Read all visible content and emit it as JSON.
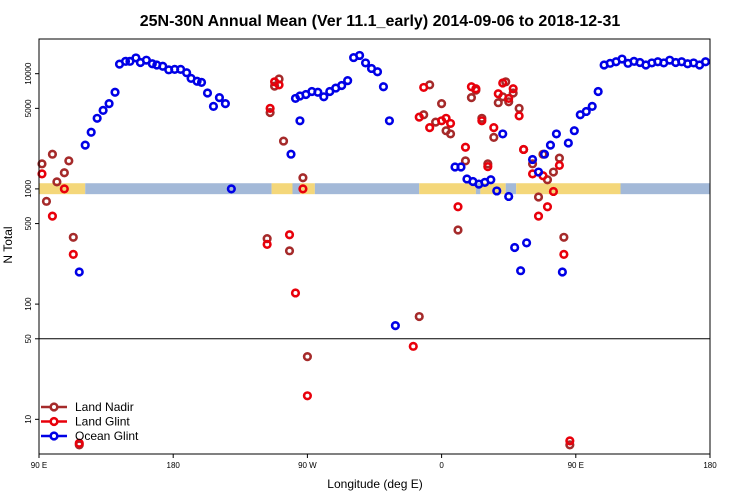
{
  "chart_data": {
    "type": "scatter",
    "title": "25N-30N Annual Mean (Ver 11.1_early)   2014-09-06 to 2018-12-31",
    "xlabel": "Longitude (deg E)",
    "ylabel": "N Total",
    "y_scale": "log",
    "xlim": [
      90,
      540
    ],
    "ylim": [
      5,
      20000
    ],
    "x_ticks": [
      {
        "value": 90,
        "label": "90 E"
      },
      {
        "value": 180,
        "label": "180"
      },
      {
        "value": 270,
        "label": "90 W"
      },
      {
        "value": 360,
        "label": "0"
      },
      {
        "value": 450,
        "label": "90 E"
      },
      {
        "value": 540,
        "label": "180"
      }
    ],
    "y_ticks": [
      {
        "value": 10,
        "label": "10"
      },
      {
        "value": 50,
        "label": "50"
      },
      {
        "value": 100,
        "label": "100"
      },
      {
        "value": 500,
        "label": "500"
      },
      {
        "value": 1000,
        "label": "1000"
      },
      {
        "value": 5000,
        "label": "5000"
      },
      {
        "value": 10000,
        "label": "10000"
      }
    ],
    "reference_line": 50,
    "legend_position": "bottom-left",
    "band": {
      "y_low": 900,
      "y_high": 1120,
      "land_color": "#f4d77a",
      "ocean_color": "#a3b9d8",
      "segments": [
        {
          "x0": 90,
          "x1": 121,
          "type": "land"
        },
        {
          "x0": 121,
          "x1": 246,
          "type": "ocean"
        },
        {
          "x0": 246,
          "x1": 260,
          "type": "land"
        },
        {
          "x0": 260,
          "x1": 265,
          "type": "ocean"
        },
        {
          "x0": 265,
          "x1": 275,
          "type": "land"
        },
        {
          "x0": 275,
          "x1": 345,
          "type": "ocean"
        },
        {
          "x0": 345,
          "x1": 383,
          "type": "land"
        },
        {
          "x0": 383,
          "x1": 386,
          "type": "ocean"
        },
        {
          "x0": 386,
          "x1": 403,
          "type": "land"
        },
        {
          "x0": 403,
          "x1": 410,
          "type": "ocean"
        },
        {
          "x0": 410,
          "x1": 480,
          "type": "land"
        },
        {
          "x0": 480,
          "x1": 540,
          "type": "ocean"
        }
      ]
    },
    "series": [
      {
        "name": "Land Nadir",
        "color": "#a52a2a",
        "points": [
          [
            92,
            1650
          ],
          [
            95,
            780
          ],
          [
            99,
            2000
          ],
          [
            102,
            1150
          ],
          [
            107,
            1380
          ],
          [
            110,
            1750
          ],
          [
            113,
            380
          ],
          [
            117,
            6
          ],
          [
            243,
            370
          ],
          [
            245,
            4600
          ],
          [
            248,
            7800
          ],
          [
            251,
            9000
          ],
          [
            254,
            2600
          ],
          [
            258,
            290
          ],
          [
            267,
            1250
          ],
          [
            270,
            35
          ],
          [
            345,
            78
          ],
          [
            348,
            4400
          ],
          [
            352,
            8000
          ],
          [
            356,
            3800
          ],
          [
            360,
            5500
          ],
          [
            363,
            3200
          ],
          [
            366,
            3000
          ],
          [
            371,
            440
          ],
          [
            376,
            1750
          ],
          [
            380,
            6200
          ],
          [
            383,
            7200
          ],
          [
            387,
            4100
          ],
          [
            391,
            1650
          ],
          [
            395,
            2800
          ],
          [
            398,
            5600
          ],
          [
            401,
            6300
          ],
          [
            403,
            8500
          ],
          [
            405,
            5700
          ],
          [
            408,
            6800
          ],
          [
            412,
            5000
          ],
          [
            415,
            2200
          ],
          [
            421,
            1650
          ],
          [
            425,
            850
          ],
          [
            428,
            2000
          ],
          [
            431,
            1200
          ],
          [
            435,
            1400
          ],
          [
            439,
            1850
          ],
          [
            442,
            380
          ],
          [
            446,
            6
          ]
        ]
      },
      {
        "name": "Land Glint",
        "color": "#e8000b",
        "points": [
          [
            92,
            1350
          ],
          [
            99,
            580
          ],
          [
            107,
            1000
          ],
          [
            113,
            270
          ],
          [
            117,
            6.2
          ],
          [
            243,
            330
          ],
          [
            245,
            5000
          ],
          [
            248,
            8500
          ],
          [
            251,
            8000
          ],
          [
            258,
            400
          ],
          [
            262,
            125
          ],
          [
            267,
            1000
          ],
          [
            270,
            16
          ],
          [
            341,
            43
          ],
          [
            345,
            4200
          ],
          [
            348,
            7600
          ],
          [
            352,
            3400
          ],
          [
            360,
            3900
          ],
          [
            363,
            4100
          ],
          [
            366,
            3700
          ],
          [
            371,
            700
          ],
          [
            376,
            2300
          ],
          [
            380,
            7700
          ],
          [
            383,
            7400
          ],
          [
            387,
            3900
          ],
          [
            391,
            1560
          ],
          [
            395,
            3400
          ],
          [
            398,
            6700
          ],
          [
            401,
            8300
          ],
          [
            405,
            6100
          ],
          [
            408,
            7400
          ],
          [
            412,
            4300
          ],
          [
            415,
            2200
          ],
          [
            421,
            1350
          ],
          [
            425,
            580
          ],
          [
            428,
            1300
          ],
          [
            431,
            700
          ],
          [
            435,
            950
          ],
          [
            439,
            1600
          ],
          [
            442,
            270
          ],
          [
            446,
            6.5
          ]
        ]
      },
      {
        "name": "Ocean Glint",
        "color": "#0000e6",
        "points": [
          [
            117,
            190
          ],
          [
            121,
            2400
          ],
          [
            125,
            3100
          ],
          [
            129,
            4100
          ],
          [
            133,
            4800
          ],
          [
            137,
            5500
          ],
          [
            141,
            6900
          ],
          [
            144,
            12100
          ],
          [
            148,
            12800
          ],
          [
            151,
            12800
          ],
          [
            155,
            13700
          ],
          [
            158,
            12500
          ],
          [
            162,
            13100
          ],
          [
            166,
            12200
          ],
          [
            169,
            11900
          ],
          [
            173,
            11600
          ],
          [
            177,
            10800
          ],
          [
            181,
            10900
          ],
          [
            185,
            10900
          ],
          [
            189,
            10200
          ],
          [
            192,
            9100
          ],
          [
            196,
            8600
          ],
          [
            199,
            8400
          ],
          [
            203,
            6800
          ],
          [
            207,
            5200
          ],
          [
            211,
            6200
          ],
          [
            215,
            5500
          ],
          [
            219,
            1000
          ],
          [
            265,
            3900
          ],
          [
            259,
            2000
          ],
          [
            262,
            6100
          ],
          [
            265,
            6400
          ],
          [
            269,
            6600
          ],
          [
            273,
            7000
          ],
          [
            277,
            6900
          ],
          [
            281,
            6300
          ],
          [
            285,
            7000
          ],
          [
            289,
            7500
          ],
          [
            293,
            7900
          ],
          [
            297,
            8700
          ],
          [
            301,
            13800
          ],
          [
            305,
            14400
          ],
          [
            309,
            12400
          ],
          [
            313,
            11100
          ],
          [
            317,
            10400
          ],
          [
            321,
            7700
          ],
          [
            325,
            3900
          ],
          [
            329,
            65
          ],
          [
            369,
            1550
          ],
          [
            373,
            1550
          ],
          [
            377,
            1220
          ],
          [
            381,
            1160
          ],
          [
            385,
            1100
          ],
          [
            389,
            1140
          ],
          [
            393,
            1200
          ],
          [
            397,
            960
          ],
          [
            401,
            3000
          ],
          [
            405,
            860
          ],
          [
            409,
            310
          ],
          [
            413,
            195
          ],
          [
            417,
            340
          ],
          [
            421,
            1800
          ],
          [
            425,
            1400
          ],
          [
            429,
            2000
          ],
          [
            433,
            2400
          ],
          [
            437,
            3000
          ],
          [
            441,
            190
          ],
          [
            445,
            2500
          ],
          [
            449,
            3200
          ],
          [
            453,
            4400
          ],
          [
            457,
            4700
          ],
          [
            461,
            5200
          ],
          [
            465,
            7000
          ],
          [
            469,
            11900
          ],
          [
            473,
            12300
          ],
          [
            477,
            12700
          ],
          [
            481,
            13400
          ],
          [
            485,
            12300
          ],
          [
            489,
            12800
          ],
          [
            493,
            12500
          ],
          [
            497,
            11900
          ],
          [
            501,
            12400
          ],
          [
            505,
            12700
          ],
          [
            509,
            12400
          ],
          [
            513,
            13100
          ],
          [
            517,
            12500
          ],
          [
            521,
            12700
          ],
          [
            525,
            12200
          ],
          [
            529,
            12400
          ],
          [
            533,
            11900
          ],
          [
            537,
            12700
          ]
        ]
      }
    ]
  }
}
